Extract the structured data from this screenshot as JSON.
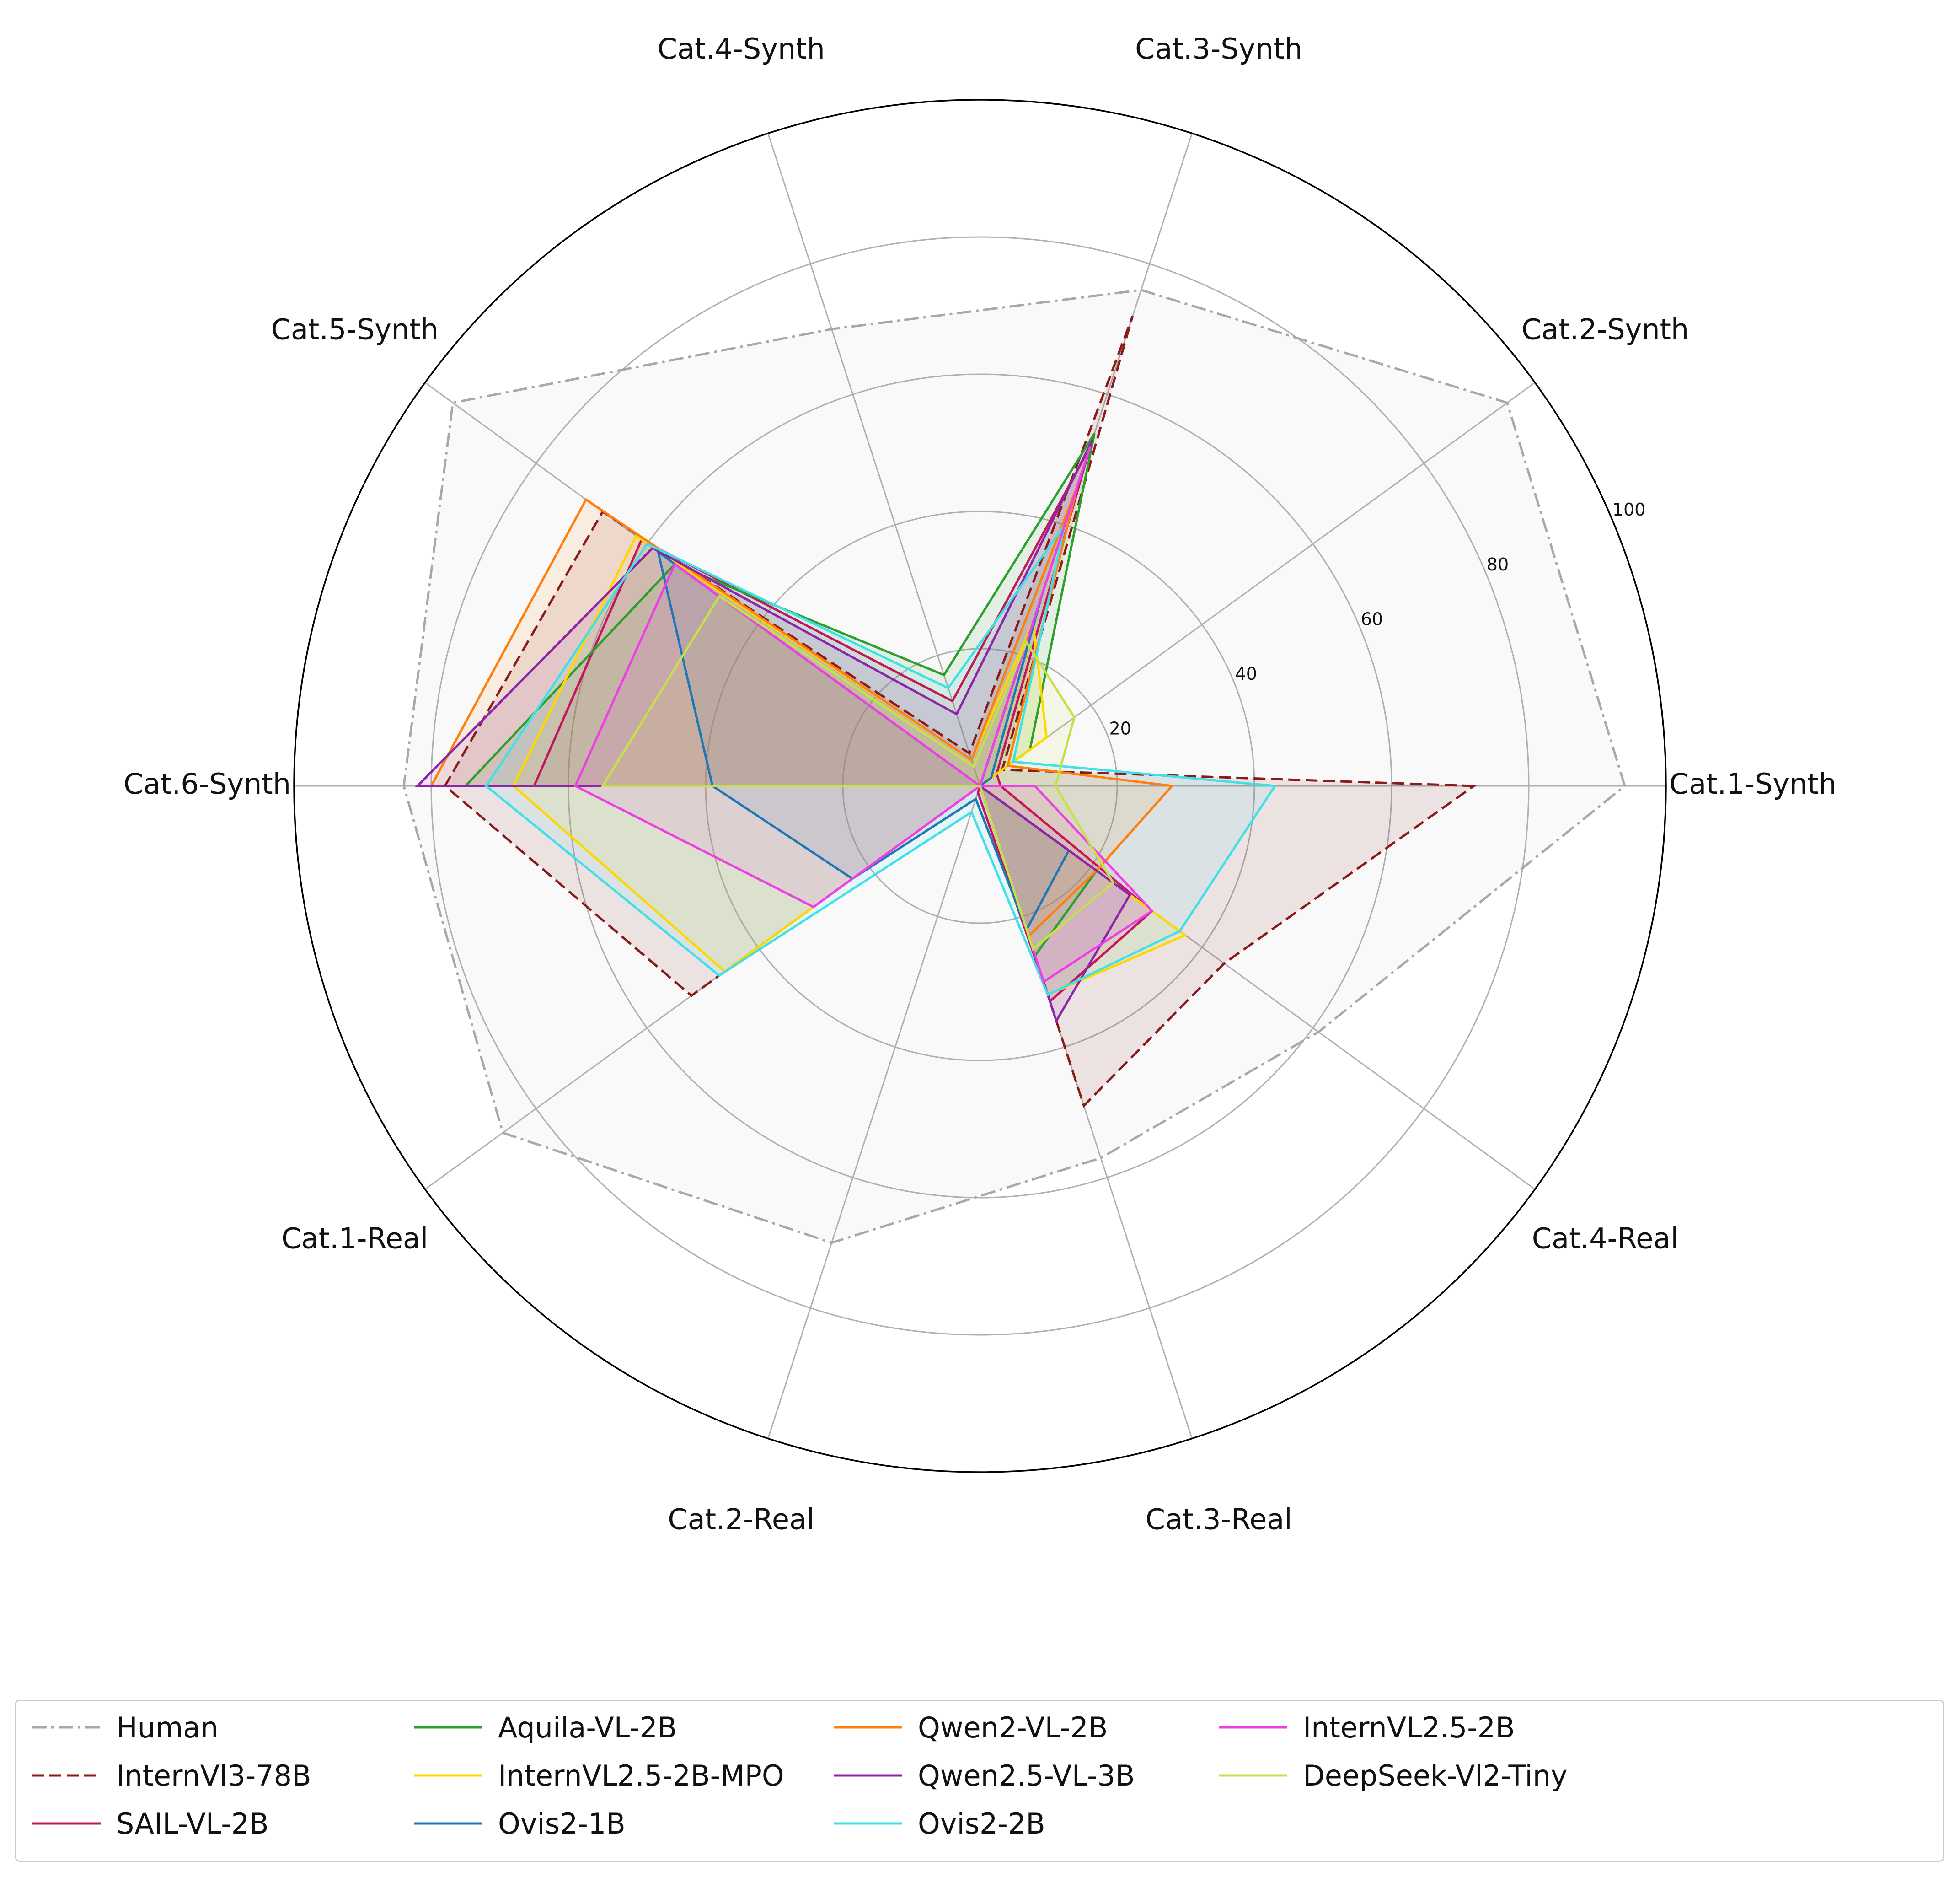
{
  "chart_data": {
    "type": "radar",
    "axes": [
      "Cat.1-Synth",
      "Cat.2-Synth",
      "Cat.3-Synth",
      "Cat.4-Synth",
      "Cat.5-Synth",
      "Cat.6-Synth",
      "Cat.1-Real",
      "Cat.2-Real",
      "Cat.3-Real",
      "Cat.4-Real"
    ],
    "rlim": [
      0,
      100
    ],
    "rticks": [
      "20",
      "40",
      "60",
      "80",
      "100"
    ],
    "grid": true,
    "legend_position": "bottom",
    "legend_columns": 5,
    "series": [
      {
        "name": "Human",
        "color": "#a8a8a8",
        "style": "dashdot",
        "filled": true,
        "values": [
          94,
          95,
          76,
          70,
          95,
          84,
          86,
          70,
          57,
          61
        ]
      },
      {
        "name": "InternVl3-78B",
        "color": "#8b1a1a",
        "style": "dashed",
        "filled": true,
        "values": [
          72,
          4,
          72,
          5,
          68,
          78,
          52,
          0,
          49,
          44
        ]
      },
      {
        "name": "SAIL-VL-2B",
        "color": "#c2185b",
        "style": "solid",
        "filled": true,
        "values": [
          3,
          3,
          52,
          13,
          61,
          65,
          0,
          1,
          33,
          31
        ]
      },
      {
        "name": "Aquila-VL-2B",
        "color": "#2ca02c",
        "style": "solid",
        "filled": true,
        "values": [
          0,
          9,
          54,
          17,
          55,
          75,
          0,
          0,
          26,
          21
        ]
      },
      {
        "name": "InternVL2.5-2B-MPO",
        "color": "#ffd700",
        "style": "solid",
        "filled": true,
        "values": [
          0,
          12,
          25,
          4,
          62,
          68,
          46,
          0,
          32,
          37
        ]
      },
      {
        "name": "Ovis2-1B",
        "color": "#1f77b4",
        "style": "solid",
        "filled": true,
        "values": [
          0,
          2,
          29,
          0,
          58,
          39,
          23,
          2,
          22,
          16
        ]
      },
      {
        "name": "Qwen2-VL-2B",
        "color": "#ff7f0e",
        "style": "solid",
        "filled": true,
        "values": [
          28,
          5,
          46,
          4,
          71,
          80,
          0,
          0,
          23,
          21
        ]
      },
      {
        "name": "Qwen2.5-VL-3B",
        "color": "#8e24aa",
        "style": "solid",
        "filled": true,
        "values": [
          0,
          0,
          53,
          11,
          59,
          82,
          0,
          0,
          36,
          27
        ]
      },
      {
        "name": "Ovis2-2B",
        "color": "#40e0e8",
        "style": "solid",
        "filled": true,
        "values": [
          43,
          6,
          40,
          15,
          60,
          72,
          47,
          4,
          32,
          36
        ]
      },
      {
        "name": "InternVL2.5-2B",
        "color": "#ee3ee6",
        "style": "solid",
        "filled": true,
        "values": [
          8,
          0,
          52,
          0,
          55,
          59,
          30,
          0,
          30,
          31
        ]
      },
      {
        "name": "DeepSeek-Vl2-Tiny",
        "color": "#c6e04a",
        "style": "solid",
        "filled": true,
        "values": [
          11,
          17,
          22,
          3,
          47,
          55,
          0,
          0,
          25,
          24
        ]
      }
    ]
  }
}
